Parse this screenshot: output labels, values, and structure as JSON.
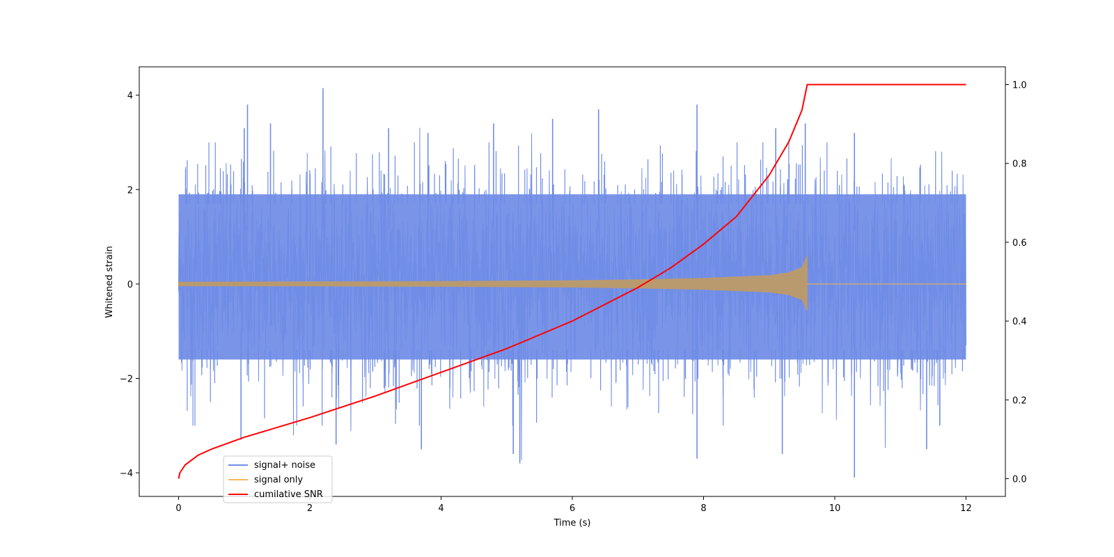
{
  "chart_data": {
    "type": "line",
    "xlabel": "Time (s)",
    "ylabel": "Whitened strain",
    "y2label": "",
    "xlim": [
      -0.6,
      12.6
    ],
    "ylim": [
      -4.5,
      4.6
    ],
    "y2lim": [
      -0.045,
      1.045
    ],
    "xticks": [
      0,
      2,
      4,
      6,
      8,
      10,
      12
    ],
    "yticks": [
      -4,
      -2,
      0,
      2,
      4
    ],
    "y2ticks": [
      0.0,
      0.2,
      0.4,
      0.6,
      0.8,
      1.0
    ],
    "xtick_labels": [
      "0",
      "2",
      "4",
      "6",
      "8",
      "10",
      "12"
    ],
    "ytick_labels": [
      "−4",
      "−2",
      "0",
      "2",
      "4"
    ],
    "y2tick_labels": [
      "0.0",
      "0.2",
      "0.4",
      "0.6",
      "0.8",
      "1.0"
    ],
    "grid": false,
    "legend_position": "lower-left",
    "series": [
      {
        "name": "signal+ noise",
        "axis": "left",
        "color": "#6f8ce6",
        "kind": "noise-band",
        "t_start": 0,
        "t_end": 12,
        "typical_range": [
          -1.6,
          1.9
        ],
        "peak_max": 4.15,
        "peak_min": -4.1,
        "spikes": [
          {
            "x": 1.0,
            "y": 3.3
          },
          {
            "x": 1.05,
            "y": 3.8
          },
          {
            "x": 1.4,
            "y": 3.4
          },
          {
            "x": 2.2,
            "y": 4.15
          },
          {
            "x": 3.2,
            "y": 3.3
          },
          {
            "x": 3.8,
            "y": 3.2
          },
          {
            "x": 4.8,
            "y": 3.4
          },
          {
            "x": 5.7,
            "y": 3.5
          },
          {
            "x": 6.4,
            "y": 3.7
          },
          {
            "x": 7.9,
            "y": 3.8
          },
          {
            "x": 9.1,
            "y": 3.3
          },
          {
            "x": 9.55,
            "y": 3.4
          },
          {
            "x": 10.3,
            "y": 3.2
          },
          {
            "x": 0.95,
            "y": -3.3
          },
          {
            "x": 2.4,
            "y": -3.4
          },
          {
            "x": 3.7,
            "y": -3.5
          },
          {
            "x": 5.1,
            "y": -3.6
          },
          {
            "x": 5.2,
            "y": -3.8
          },
          {
            "x": 7.9,
            "y": -3.7
          },
          {
            "x": 9.2,
            "y": -3.6
          },
          {
            "x": 10.3,
            "y": -4.1
          },
          {
            "x": 11.4,
            "y": -3.5
          },
          {
            "x": 11.6,
            "y": -3.0
          }
        ]
      },
      {
        "name": "signal only",
        "axis": "left",
        "color": "#f5b860",
        "kind": "chirp-envelope",
        "t_start": 0,
        "t_merge": 9.58,
        "t_end": 12,
        "envelope": {
          "x": [
            0,
            2,
            4,
            6,
            7,
            8,
            9,
            9.3,
            9.5,
            9.58
          ],
          "y": [
            0.04,
            0.045,
            0.055,
            0.07,
            0.09,
            0.12,
            0.18,
            0.24,
            0.35,
            0.6
          ]
        },
        "post_merge_value": 0
      },
      {
        "name": "cumilative SNR",
        "axis": "right",
        "color": "#ff0000",
        "x": [
          0,
          0.02,
          0.1,
          0.3,
          0.5,
          1.0,
          1.5,
          2.0,
          3.0,
          4.0,
          5.0,
          6.0,
          7.0,
          7.5,
          8.0,
          8.5,
          9.0,
          9.3,
          9.5,
          9.58,
          12
        ],
        "y": [
          0.0,
          0.015,
          0.035,
          0.06,
          0.075,
          0.105,
          0.13,
          0.155,
          0.21,
          0.27,
          0.33,
          0.4,
          0.485,
          0.535,
          0.595,
          0.665,
          0.77,
          0.855,
          0.935,
          1.0,
          1.0
        ]
      }
    ]
  }
}
